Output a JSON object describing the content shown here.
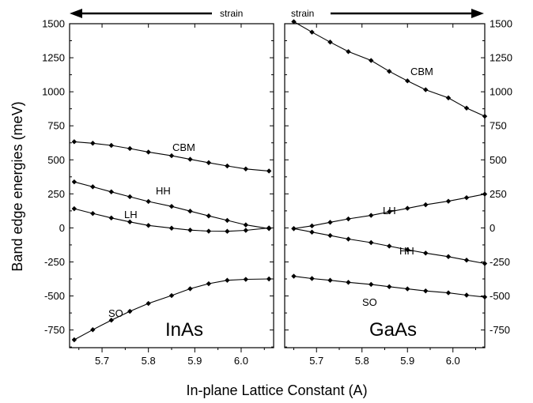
{
  "chart_data": [
    {
      "type": "line",
      "panel": "InAs",
      "material_label": "InAs",
      "strain_label": "strain",
      "strain_direction": "left",
      "xlabel": "In-plane Lattice Constant (A)",
      "ylabel": "Band edge energies (meV)",
      "xlim": [
        5.63,
        6.07
      ],
      "ylim": [
        -880,
        1500
      ],
      "xticks": [
        "5.7",
        "5.8",
        "5.9",
        "6.0"
      ],
      "xtick_values": [
        5.7,
        5.8,
        5.9,
        6.0
      ],
      "yticks": [
        "1500",
        "1250",
        "1000",
        "750",
        "500",
        "250",
        "0",
        "-250",
        "-500",
        "-750"
      ],
      "ytick_values": [
        1500,
        1250,
        1000,
        750,
        500,
        250,
        0,
        -250,
        -500,
        -750
      ],
      "y_axis_side": "left",
      "grid": false,
      "x": [
        5.64,
        5.68,
        5.72,
        5.76,
        5.8,
        5.85,
        5.89,
        5.93,
        5.97,
        6.01,
        6.06
      ],
      "series": [
        {
          "name": "CBM",
          "values": [
            633,
            622,
            606,
            583,
            557,
            530,
            504,
            479,
            455,
            433,
            418
          ]
        },
        {
          "name": "HH",
          "values": [
            338,
            302,
            265,
            229,
            194,
            158,
            123,
            88,
            55,
            22,
            -5
          ]
        },
        {
          "name": "LH",
          "values": [
            141,
            106,
            73,
            44,
            18,
            -2,
            -16,
            -24,
            -25,
            -18,
            0
          ]
        },
        {
          "name": "SO",
          "values": [
            -822,
            -748,
            -678,
            -613,
            -555,
            -497,
            -447,
            -410,
            -385,
            -378,
            -375
          ]
        }
      ]
    },
    {
      "type": "line",
      "panel": "GaAs",
      "material_label": "GaAs",
      "strain_label": "strain",
      "strain_direction": "right",
      "xlim": [
        5.63,
        6.07
      ],
      "ylim": [
        -880,
        1500
      ],
      "xticks": [
        "5.7",
        "5.8",
        "5.9",
        "6.0"
      ],
      "xtick_values": [
        5.7,
        5.8,
        5.9,
        6.0
      ],
      "yticks": [
        "1500",
        "1250",
        "1000",
        "750",
        "500",
        "250",
        "0",
        "-250",
        "-500",
        "-750"
      ],
      "ytick_values": [
        1500,
        1250,
        1000,
        750,
        500,
        250,
        0,
        -250,
        -500,
        -750
      ],
      "y_axis_side": "right",
      "grid": false,
      "x": [
        5.65,
        5.69,
        5.73,
        5.77,
        5.82,
        5.86,
        5.9,
        5.94,
        5.99,
        6.03,
        6.07
      ],
      "series": [
        {
          "name": "CBM",
          "values": [
            1515,
            1438,
            1365,
            1295,
            1230,
            1150,
            1080,
            1015,
            955,
            880,
            820
          ]
        },
        {
          "name": "LH",
          "values": [
            -5,
            15,
            41,
            66,
            92,
            118,
            144,
            170,
            196,
            222,
            248
          ]
        },
        {
          "name": "HH",
          "values": [
            -5,
            -31,
            -56,
            -82,
            -108,
            -134,
            -160,
            -185,
            -211,
            -237,
            -262
          ]
        },
        {
          "name": "SO",
          "values": [
            -355,
            -372,
            -385,
            -400,
            -415,
            -432,
            -448,
            -463,
            -477,
            -494,
            -508
          ]
        }
      ]
    }
  ]
}
